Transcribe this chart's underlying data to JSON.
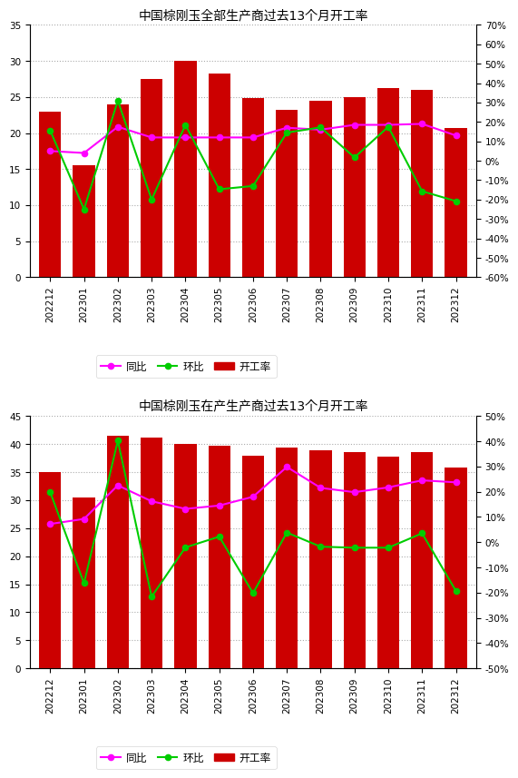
{
  "chart1": {
    "title": "中国棕刚玉全部生产商过去13个月开工率",
    "categories": [
      "202212",
      "202301",
      "202302",
      "202303",
      "202304",
      "202305",
      "202306",
      "202307",
      "202308",
      "202309",
      "202310",
      "202311",
      "202312"
    ],
    "bar_values": [
      23.0,
      15.5,
      24.0,
      27.5,
      30.0,
      28.3,
      24.8,
      23.2,
      24.5,
      25.0,
      26.2,
      26.0,
      20.7
    ],
    "yoy_values": [
      0.05,
      0.04,
      0.175,
      0.12,
      0.12,
      0.12,
      0.12,
      0.17,
      0.16,
      0.185,
      0.185,
      0.19,
      0.13
    ],
    "mom_values": [
      0.156,
      -0.25,
      0.31,
      -0.2,
      0.185,
      -0.147,
      -0.13,
      0.145,
      0.172,
      0.017,
      0.175,
      -0.157,
      -0.208
    ],
    "ylim_left": [
      0,
      35
    ],
    "ylim_right": [
      -0.6,
      0.7
    ],
    "yticks_left": [
      0,
      5,
      10,
      15,
      20,
      25,
      30,
      35
    ],
    "yticks_right": [
      -0.6,
      -0.5,
      -0.4,
      -0.3,
      -0.2,
      -0.1,
      0.0,
      0.1,
      0.2,
      0.3,
      0.4,
      0.5,
      0.6,
      0.7
    ]
  },
  "chart2": {
    "title": "中国棕刚玉在产生产商过去13个月开工率",
    "categories": [
      "202212",
      "202301",
      "202302",
      "202303",
      "202304",
      "202305",
      "202306",
      "202307",
      "202308",
      "202309",
      "202310",
      "202311",
      "202312"
    ],
    "bar_values": [
      35.0,
      30.4,
      41.5,
      41.2,
      40.0,
      39.7,
      37.9,
      39.3,
      38.9,
      38.5,
      37.8,
      38.6,
      35.8
    ],
    "yoy_values": [
      0.072,
      0.092,
      0.225,
      0.162,
      0.132,
      0.145,
      0.18,
      0.298,
      0.215,
      0.198,
      0.217,
      0.245,
      0.237
    ],
    "mom_values": [
      0.198,
      -0.163,
      0.402,
      -0.216,
      -0.021,
      0.022,
      -0.202,
      0.038,
      -0.018,
      -0.022,
      -0.022,
      0.035,
      -0.193
    ],
    "ylim_left": [
      0,
      45
    ],
    "ylim_right": [
      -0.5,
      0.5
    ],
    "yticks_left": [
      0,
      5,
      10,
      15,
      20,
      25,
      30,
      35,
      40,
      45
    ],
    "yticks_right": [
      -0.5,
      -0.4,
      -0.3,
      -0.2,
      -0.1,
      0.0,
      0.1,
      0.2,
      0.3,
      0.4,
      0.5
    ]
  },
  "bar_color": "#CC0000",
  "yoy_color": "#FF00FF",
  "mom_color": "#00CC00",
  "bg_color": "#FFFFFF",
  "grid_color": "#AAAAAA",
  "legend_labels": [
    "同比",
    "环比",
    "开工率"
  ],
  "title_fontsize": 10,
  "tick_fontsize": 7.5,
  "legend_fontsize": 8.5
}
